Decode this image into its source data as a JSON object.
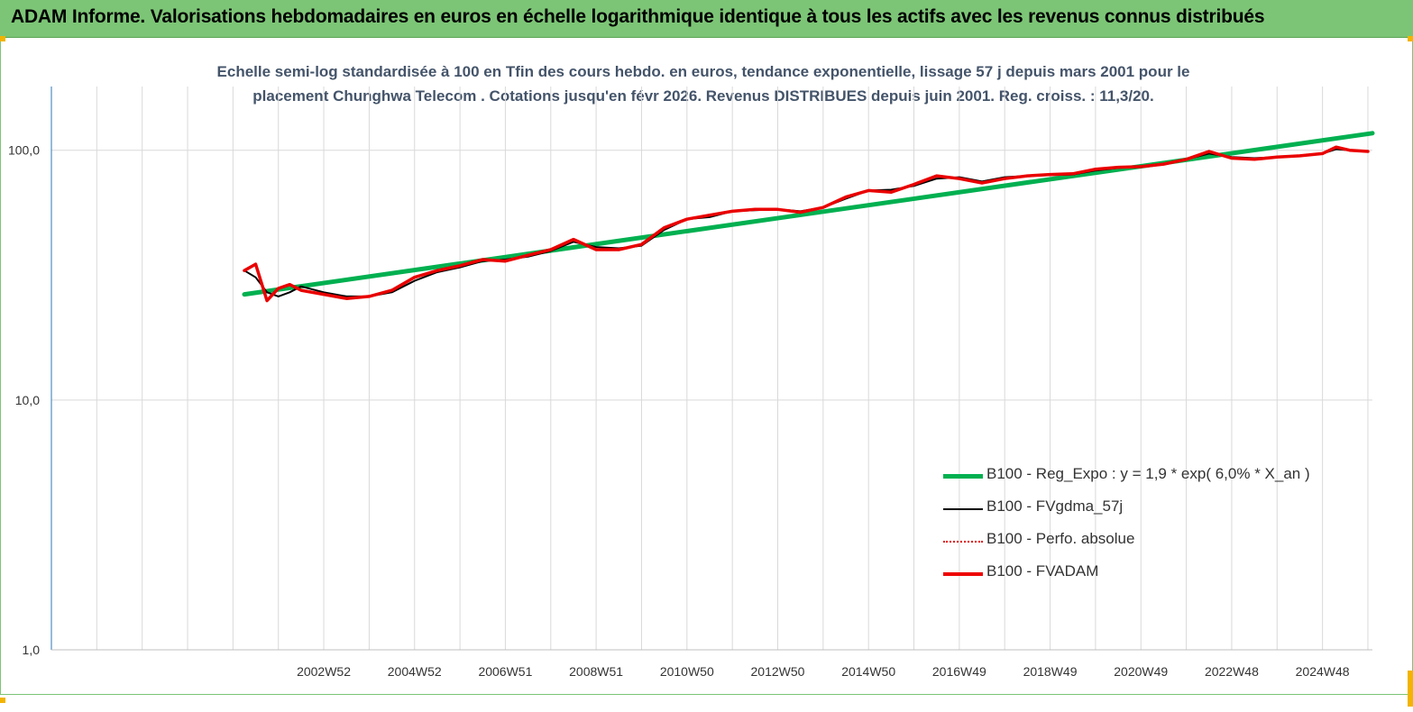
{
  "banner": {
    "title": "ADAM Informe. Valorisations hebdomadaires en euros en échelle logarithmique identique à tous les actifs avec les revenus connus distribués"
  },
  "colors": {
    "banner": "#7cc576",
    "reg_expo": "#00b050",
    "fvgdma": "#000000",
    "perfo": "#e00000",
    "fvadam": "#ee0000",
    "axis": "#2e75b6",
    "grid": "#d9d9d9",
    "corner": "#f2b400"
  },
  "chart_data": {
    "type": "line",
    "title_line1": "Echelle semi-log standardisée à 100 en Tfin des cours hebdo. en euros, tendance exponentielle, lissage 57 j depuis mars 2001 pour le",
    "title_line2": "placement Chunghwa Telecom . Cotations jusqu'en févr 2026. Revenus DISTRIBUES depuis juin 2001. Reg. croiss. : 11,3/20.",
    "y_scale": "log",
    "ylim": [
      1,
      180
    ],
    "y_ticks": [
      1,
      10,
      100
    ],
    "y_tick_labels": [
      "1,0",
      "10,0",
      "100,0"
    ],
    "xlim": [
      1997.0,
      2026.1
    ],
    "x_tick_labels": [
      "2002W52",
      "2004W52",
      "2006W51",
      "2008W51",
      "2010W50",
      "2012W50",
      "2014W50",
      "2016W49",
      "2018W49",
      "2020W49",
      "2022W48",
      "2024W48"
    ],
    "x_tick_years": [
      2003.0,
      2005.0,
      2007.0,
      2009.0,
      2011.0,
      2013.0,
      2015.0,
      2017.0,
      2019.0,
      2021.0,
      2023.0,
      2025.0
    ],
    "grid": true,
    "legend_position": "bottom-right",
    "series": [
      {
        "name": "B100 - Reg_Expo : y = 1,9 * exp( 6,0% *  X_an )",
        "x": [
          2001.25,
          2026.1
        ],
        "y": [
          26.5,
          117
        ]
      },
      {
        "name": "B100 - FVgdma_57j",
        "x": [
          2001.25,
          2001.5,
          2001.75,
          2002.0,
          2002.25,
          2002.5,
          2003.0,
          2003.5,
          2004.0,
          2004.5,
          2005.0,
          2005.5,
          2006.0,
          2006.5,
          2007.0,
          2007.5,
          2008.0,
          2008.5,
          2009.0,
          2009.5,
          2010.0,
          2010.5,
          2011.0,
          2011.5,
          2012.0,
          2012.5,
          2013.0,
          2013.5,
          2014.0,
          2014.5,
          2015.0,
          2015.5,
          2016.0,
          2016.5,
          2017.0,
          2017.5,
          2018.0,
          2018.5,
          2019.0,
          2019.5,
          2020.0,
          2020.5,
          2021.0,
          2021.5,
          2022.0,
          2022.5,
          2023.0,
          2023.5,
          2024.0,
          2024.5,
          2025.0,
          2025.3,
          2025.6,
          2026.0
        ],
        "y": [
          33,
          31,
          27,
          26,
          27,
          28.5,
          27,
          26,
          26,
          27,
          30,
          32.5,
          34,
          36,
          36.5,
          37.5,
          39.5,
          43,
          41,
          40.5,
          41.5,
          48,
          53,
          54,
          57,
          57.5,
          58,
          57,
          59,
          64,
          69,
          69.5,
          72,
          77,
          78,
          75,
          78,
          79,
          79.5,
          80,
          83,
          85,
          86,
          88,
          92,
          97,
          94,
          93,
          94,
          95,
          97,
          101,
          100,
          99
        ]
      },
      {
        "name": "B100 - Perfo. absolue",
        "x": [
          2001.25,
          2001.5,
          2001.75,
          2002.0,
          2002.25,
          2002.5,
          2003.0,
          2003.5,
          2004.0,
          2004.5,
          2005.0,
          2005.5,
          2006.0,
          2006.5,
          2007.0,
          2007.5,
          2008.0,
          2008.5,
          2009.0,
          2009.5,
          2010.0,
          2010.5,
          2011.0,
          2011.5,
          2012.0,
          2012.5,
          2013.0,
          2013.5,
          2014.0,
          2014.5,
          2015.0,
          2015.5,
          2016.0,
          2016.5,
          2017.0,
          2017.5,
          2018.0,
          2018.5,
          2019.0,
          2019.5,
          2020.0,
          2020.5,
          2021.0,
          2021.5,
          2022.0,
          2022.5,
          2023.0,
          2023.5,
          2024.0,
          2024.5,
          2025.0,
          2025.3,
          2025.6,
          2026.0
        ],
        "y": [
          33,
          35,
          25,
          28,
          29,
          27.5,
          26.5,
          25.5,
          26,
          27.5,
          31,
          33,
          34.5,
          36.5,
          36,
          38,
          40,
          44,
          40,
          40,
          42,
          49,
          53,
          55,
          57,
          58,
          58,
          56.5,
          59,
          65,
          69,
          68,
          73,
          79,
          77,
          74,
          77,
          79,
          80,
          80.5,
          84,
          85.5,
          86,
          88,
          92,
          99,
          93,
          92,
          94,
          95,
          97,
          103,
          100,
          99
        ]
      },
      {
        "name": "B100 - FVADAM",
        "x": [
          2001.25,
          2001.5,
          2001.75,
          2002.0,
          2002.25,
          2002.5,
          2003.0,
          2003.5,
          2004.0,
          2004.5,
          2005.0,
          2005.5,
          2006.0,
          2006.5,
          2007.0,
          2007.5,
          2008.0,
          2008.5,
          2009.0,
          2009.5,
          2010.0,
          2010.5,
          2011.0,
          2011.5,
          2012.0,
          2012.5,
          2013.0,
          2013.5,
          2014.0,
          2014.5,
          2015.0,
          2015.5,
          2016.0,
          2016.5,
          2017.0,
          2017.5,
          2018.0,
          2018.5,
          2019.0,
          2019.5,
          2020.0,
          2020.5,
          2021.0,
          2021.5,
          2022.0,
          2022.5,
          2023.0,
          2023.5,
          2024.0,
          2024.5,
          2025.0,
          2025.3,
          2025.6,
          2026.0
        ],
        "y": [
          33,
          35,
          25,
          28,
          29,
          27.5,
          26.5,
          25.5,
          26,
          27.5,
          31,
          33,
          34.5,
          36.5,
          36,
          38,
          40,
          44,
          40,
          40,
          42,
          49,
          53,
          55,
          57,
          58,
          58,
          56.5,
          59,
          65,
          69,
          68,
          73,
          79,
          77,
          74,
          77,
          79,
          80,
          80.5,
          84,
          85.5,
          86,
          88,
          92,
          99,
          93,
          92,
          94,
          95,
          97,
          103,
          100,
          99
        ]
      }
    ]
  }
}
